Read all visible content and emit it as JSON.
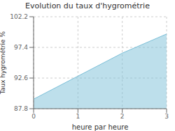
{
  "chart_data": {
    "type": "area",
    "title": "Evolution du taux d'hygrométrie",
    "xlabel": "heure par heure",
    "ylabel": "Taux hygrométrie %",
    "x": [
      0,
      1,
      2,
      3
    ],
    "values": [
      89.3,
      92.9,
      96.5,
      99.5
    ],
    "color": "#7bbfd8",
    "xlim": [
      0,
      3
    ],
    "ylim": [
      87.8,
      102.2
    ],
    "xticks": [
      0,
      1,
      2,
      3
    ],
    "yticks": [
      87.8,
      92.6,
      97.4,
      102.2
    ],
    "grid": true
  }
}
